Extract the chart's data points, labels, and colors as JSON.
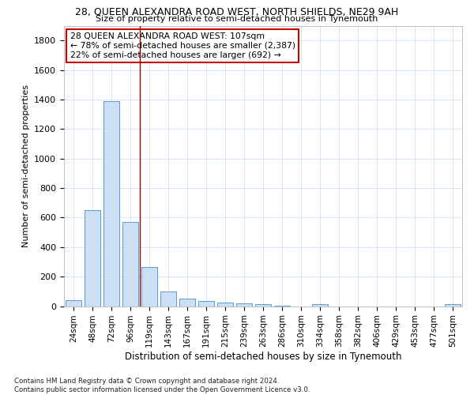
{
  "title1": "28, QUEEN ALEXANDRA ROAD WEST, NORTH SHIELDS, NE29 9AH",
  "title2": "Size of property relative to semi-detached houses in Tynemouth",
  "xlabel": "Distribution of semi-detached houses by size in Tynemouth",
  "ylabel": "Number of semi-detached properties",
  "footnote": "Contains HM Land Registry data © Crown copyright and database right 2024.\nContains public sector information licensed under the Open Government Licence v3.0.",
  "categories": [
    "24sqm",
    "48sqm",
    "72sqm",
    "96sqm",
    "119sqm",
    "143sqm",
    "167sqm",
    "191sqm",
    "215sqm",
    "239sqm",
    "263sqm",
    "286sqm",
    "310sqm",
    "334sqm",
    "358sqm",
    "382sqm",
    "406sqm",
    "429sqm",
    "453sqm",
    "477sqm",
    "501sqm"
  ],
  "values": [
    40,
    650,
    1390,
    570,
    265,
    100,
    50,
    35,
    25,
    20,
    15,
    5,
    0,
    15,
    0,
    0,
    0,
    0,
    0,
    0,
    15
  ],
  "bar_color": "#cce0f5",
  "bar_edge_color": "#5b9bd5",
  "vline_x": 3.5,
  "vline_color": "#8b0000",
  "annotation_text": "28 QUEEN ALEXANDRA ROAD WEST: 107sqm\n← 78% of semi-detached houses are smaller (2,387)\n22% of semi-detached houses are larger (692) →",
  "annotation_box_color": "#ffffff",
  "annotation_box_edge": "#cc0000",
  "ylim": [
    0,
    1900
  ],
  "yticks": [
    0,
    200,
    400,
    600,
    800,
    1000,
    1200,
    1400,
    1600,
    1800
  ],
  "background_color": "#ffffff",
  "grid_color": "#c5d8ee"
}
